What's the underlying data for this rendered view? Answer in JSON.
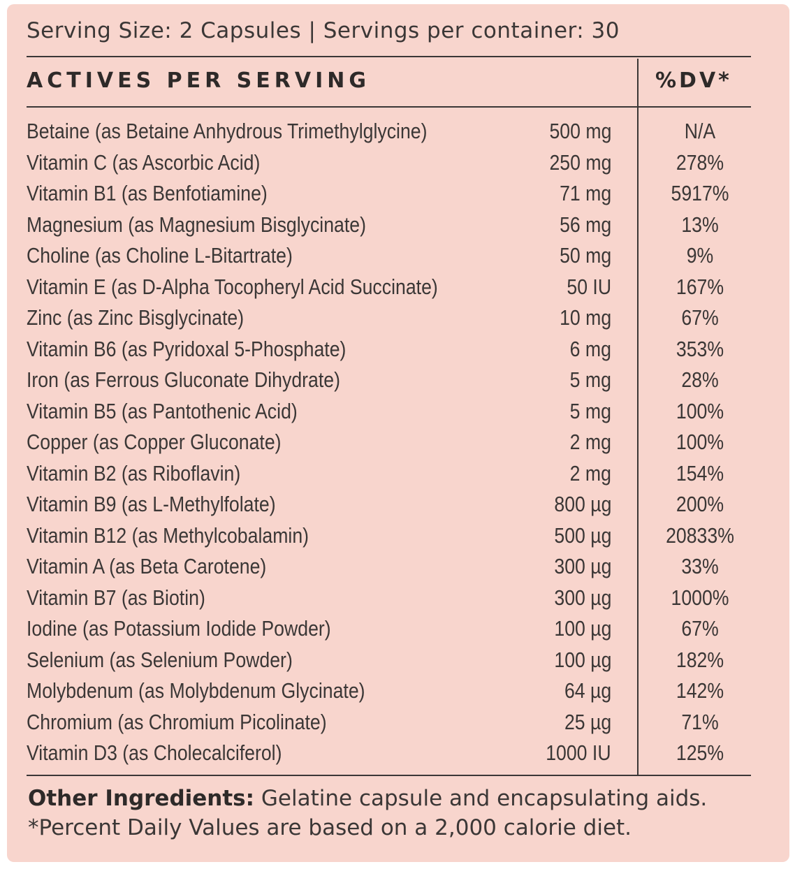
{
  "serving_line": "Serving Size: 2 Capsules | Servings per container: 30",
  "headers": {
    "actives": "ACTIVES PER SERVING",
    "dv": "%DV*"
  },
  "ingredients": [
    {
      "name": "Betaine (as Betaine Anhydrous Trimethylglycine)",
      "amount": "500 mg",
      "dv": "N/A"
    },
    {
      "name": "Vitamin C (as Ascorbic Acid)",
      "amount": "250 mg",
      "dv": "278%"
    },
    {
      "name": "Vitamin B1 (as Benfotiamine)",
      "amount": "71 mg",
      "dv": "5917%"
    },
    {
      "name": "Magnesium (as Magnesium Bisglycinate)",
      "amount": "56 mg",
      "dv": "13%"
    },
    {
      "name": "Choline (as Choline L-Bitartrate)",
      "amount": "50 mg",
      "dv": "9%"
    },
    {
      "name": "Vitamin E (as D-Alpha Tocopheryl Acid Succinate)",
      "amount": "50 IU",
      "dv": "167%"
    },
    {
      "name": "Zinc (as Zinc Bisglycinate)",
      "amount": "10 mg",
      "dv": "67%"
    },
    {
      "name": "Vitamin B6 (as Pyridoxal 5-Phosphate)",
      "amount": "6 mg",
      "dv": "353%"
    },
    {
      "name": "Iron (as Ferrous Gluconate Dihydrate)",
      "amount": "5 mg",
      "dv": "28%"
    },
    {
      "name": "Vitamin B5 (as Pantothenic Acid)",
      "amount": "5 mg",
      "dv": "100%"
    },
    {
      "name": "Copper (as Copper Gluconate)",
      "amount": "2 mg",
      "dv": "100%"
    },
    {
      "name": "Vitamin B2 (as Riboflavin)",
      "amount": "2 mg",
      "dv": "154%"
    },
    {
      "name": "Vitamin B9 (as L-Methylfolate)",
      "amount": "800 µg",
      "dv": "200%"
    },
    {
      "name": "Vitamin B12 (as Methylcobalamin)",
      "amount": "500 µg",
      "dv": "20833%"
    },
    {
      "name": "Vitamin A (as Beta Carotene)",
      "amount": "300 µg",
      "dv": "33%"
    },
    {
      "name": "Vitamin B7 (as Biotin)",
      "amount": "300 µg",
      "dv": "1000%"
    },
    {
      "name": "Iodine (as Potassium Iodide Powder)",
      "amount": "100 µg",
      "dv": "67%"
    },
    {
      "name": "Selenium (as Selenium Powder)",
      "amount": "100 µg",
      "dv": "182%"
    },
    {
      "name": "Molybdenum (as Molybdenum Glycinate)",
      "amount": "64 µg",
      "dv": "142%"
    },
    {
      "name": "Chromium (as Chromium Picolinate)",
      "amount": "25 µg",
      "dv": "71%"
    },
    {
      "name": "Vitamin D3 (as Cholecalciferol)",
      "amount": "1000 IU",
      "dv": "125%"
    }
  ],
  "footer": {
    "other_label": "Other Ingredients:",
    "other_text": " Gelatine capsule and encapsulating aids.",
    "dv_note": "*Percent Daily Values are based on a 2,000 calorie diet."
  },
  "colors": {
    "background": "#f8d5cd",
    "text": "#3b3736"
  }
}
